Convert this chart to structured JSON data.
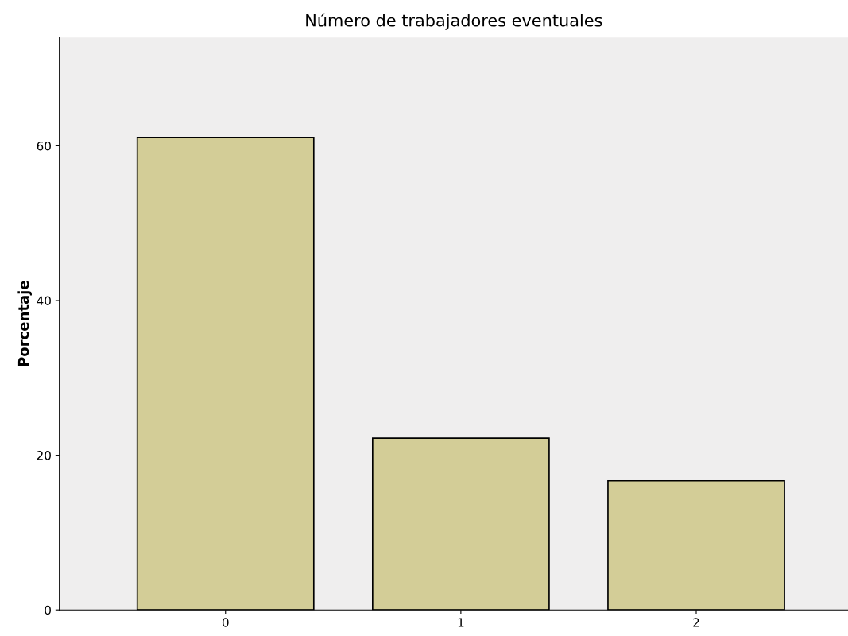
{
  "chart_data": {
    "type": "bar",
    "title": "Número de trabajadores eventuales",
    "ylabel": "Porcentaje",
    "categories": [
      "0",
      "1",
      "2"
    ],
    "values": [
      61.1,
      22.2,
      16.7
    ],
    "color": "#d3cd97",
    "ylim": [
      0,
      74
    ],
    "yticks": [
      0,
      20,
      40,
      60
    ],
    "grid": false,
    "legend": false
  }
}
